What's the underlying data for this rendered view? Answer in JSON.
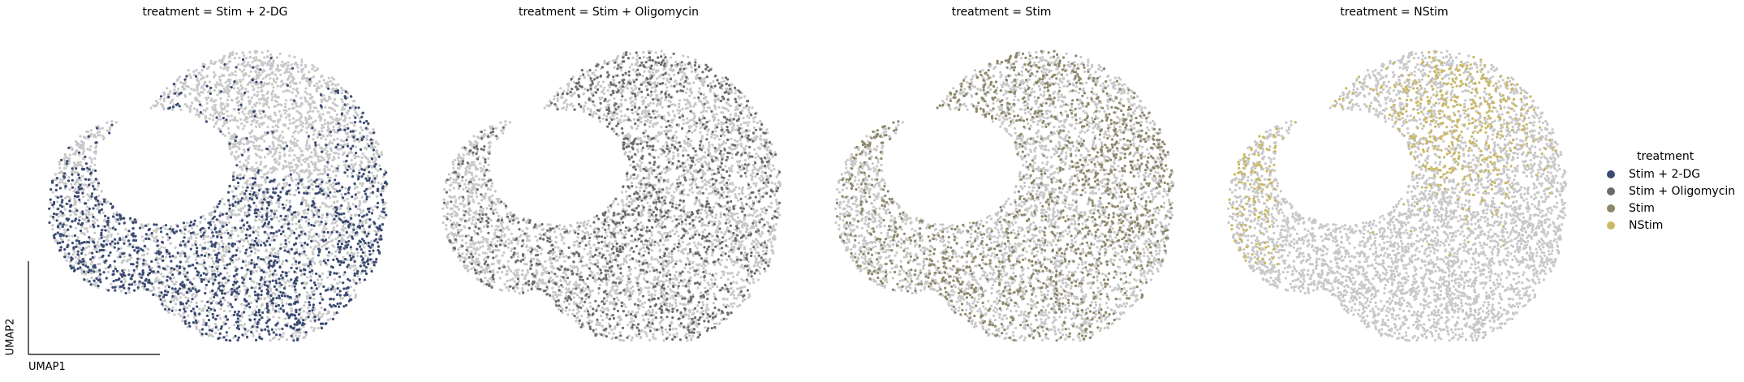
{
  "chart_data": {
    "type": "scatter",
    "embedding": "UMAP",
    "xlabel": "UMAP1",
    "ylabel": "UMAP2",
    "grid": false,
    "legend_position": "right",
    "legend": {
      "title": "treatment",
      "items": [
        {
          "label": "Stim + 2-DG",
          "color": "#3a4a72"
        },
        {
          "label": "Stim + Oligomycin",
          "color": "#6b6b6b"
        },
        {
          "label": "Stim",
          "color": "#8c8769"
        },
        {
          "label": "NStim",
          "color": "#c9b865"
        }
      ]
    },
    "background_color": "#c8c8c8",
    "panels": [
      {
        "title": "treatment = Stim + 2-DG",
        "highlight": "Stim + 2-DG"
      },
      {
        "title": "treatment = Stim + Oligomycin",
        "highlight": "Stim + Oligomycin"
      },
      {
        "title": "treatment = Stim",
        "highlight": "Stim"
      },
      {
        "title": "treatment = NStim",
        "highlight": "NStim"
      }
    ]
  }
}
